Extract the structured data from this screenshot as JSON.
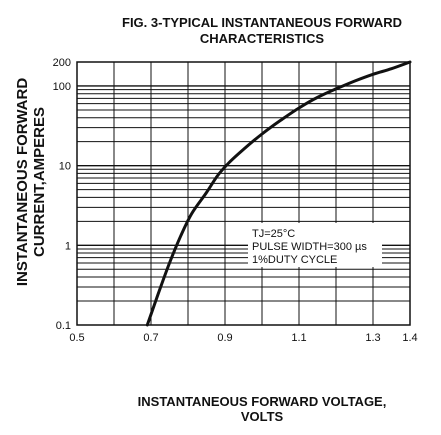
{
  "chart_data": {
    "type": "line",
    "title": [
      "FIG. 3-TYPICAL INSTANTANEOUS FORWARD",
      "CHARACTERISTICS"
    ],
    "xlabel": [
      "INSTANTANEOUS FORWARD VOLTAGE,",
      "VOLTS"
    ],
    "ylabel": [
      "INSTANTANEOUS FORWARD",
      "CURRENT,AMPERES"
    ],
    "xlim": [
      0.5,
      1.4
    ],
    "ylim": [
      0.1,
      200
    ],
    "yscale": "log",
    "grid": true,
    "x_ticks": [
      0.5,
      0.7,
      0.9,
      1.1,
      1.3,
      1.4
    ],
    "x_tick_labels": [
      "0.5",
      "0.7",
      "0.9",
      "1.1",
      "1.3",
      "1.4"
    ],
    "y_ticks": [
      0.1,
      1,
      10,
      100,
      200
    ],
    "y_tick_labels": [
      "0.1",
      "1",
      "10",
      "100",
      "200"
    ],
    "annotation": [
      "TJ=25°C",
      "PULSE WIDTH=300 µs",
      "1%DUTY CYCLE"
    ],
    "series": [
      {
        "x": [
          0.69,
          0.72,
          0.75,
          0.78,
          0.81,
          0.85,
          0.88,
          0.91,
          0.95,
          1.0,
          1.05,
          1.1,
          1.15,
          1.2,
          1.25,
          1.3,
          1.35,
          1.4
        ],
        "y": [
          0.1,
          0.25,
          0.6,
          1.3,
          2.5,
          4.6,
          7.5,
          10.8,
          16,
          25,
          37,
          53,
          72,
          92,
          115,
          140,
          165,
          200
        ]
      }
    ]
  }
}
